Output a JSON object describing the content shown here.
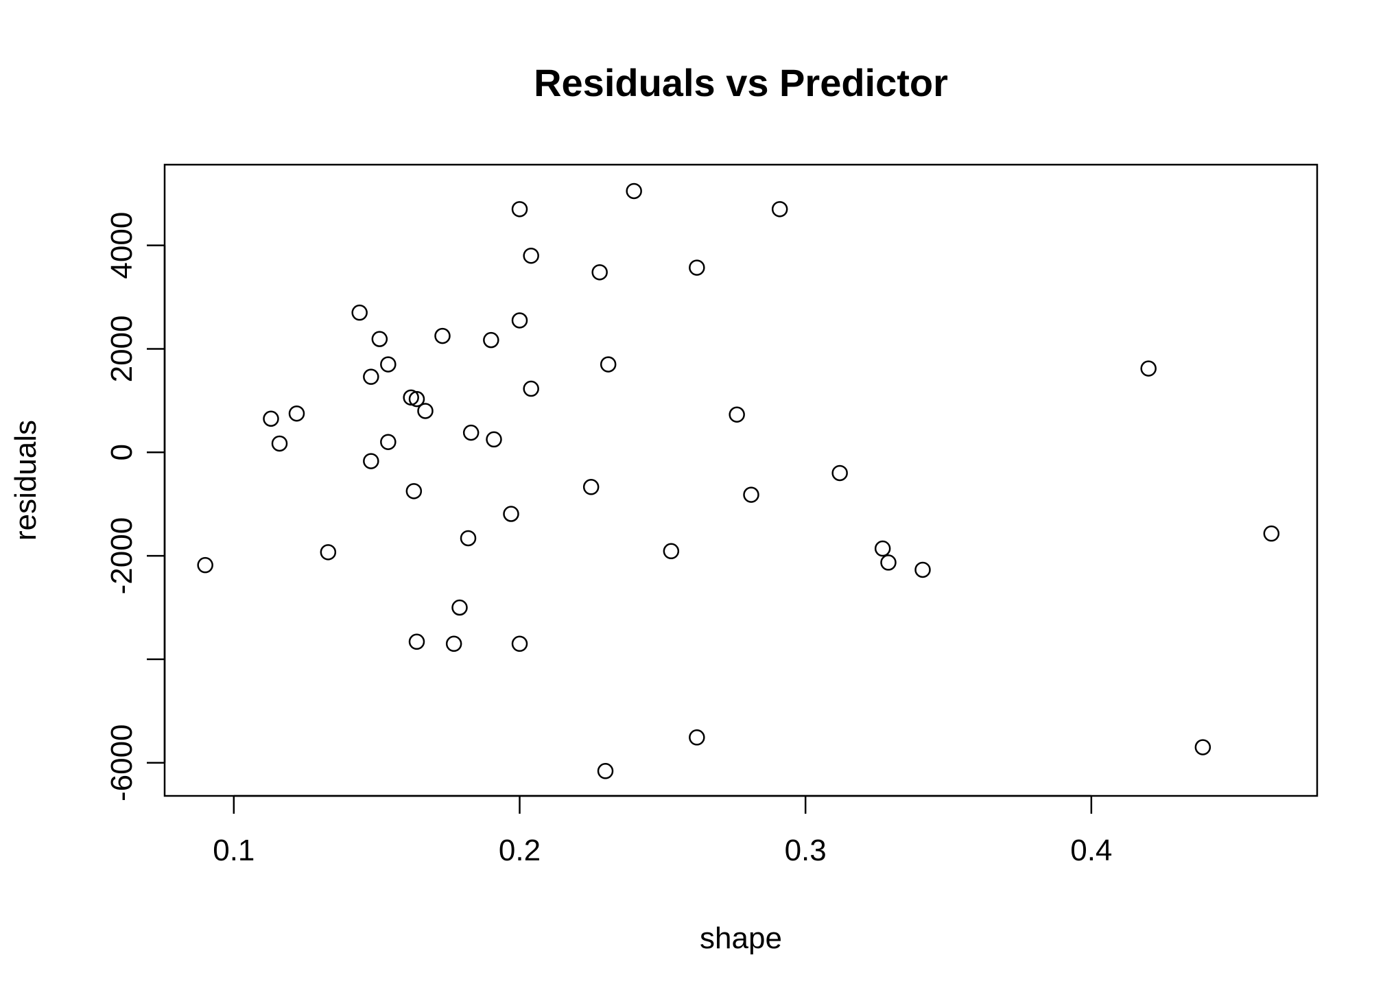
{
  "chart_data": {
    "type": "scatter",
    "title": "Residuals vs Predictor",
    "xlabel": "shape",
    "ylabel": "residuals",
    "xlim": [
      0.0758,
      0.479
    ],
    "ylim": [
      -6640,
      5560
    ],
    "xticks": [
      0.1,
      0.2,
      0.3,
      0.4
    ],
    "xtick_labels": [
      "0.1",
      "0.2",
      "0.3",
      "0.4"
    ],
    "yticks": [
      -6000,
      -4000,
      -2000,
      0,
      2000,
      4000
    ],
    "ytick_labels": [
      "-6000",
      "",
      "-2000",
      "0",
      "2000",
      "4000"
    ],
    "grid": false,
    "marker": "open-circle",
    "colors": {
      "points": "#000000",
      "axes": "#000000",
      "background": "#ffffff"
    },
    "points": [
      {
        "x": 0.09,
        "y": -2180
      },
      {
        "x": 0.113,
        "y": 650
      },
      {
        "x": 0.116,
        "y": 170
      },
      {
        "x": 0.122,
        "y": 750
      },
      {
        "x": 0.133,
        "y": -1930
      },
      {
        "x": 0.144,
        "y": 2700
      },
      {
        "x": 0.148,
        "y": 1460
      },
      {
        "x": 0.148,
        "y": -170
      },
      {
        "x": 0.151,
        "y": 2190
      },
      {
        "x": 0.154,
        "y": 1700
      },
      {
        "x": 0.154,
        "y": 200
      },
      {
        "x": 0.162,
        "y": 1060
      },
      {
        "x": 0.163,
        "y": -750
      },
      {
        "x": 0.164,
        "y": 1030
      },
      {
        "x": 0.164,
        "y": -3660
      },
      {
        "x": 0.167,
        "y": 800
      },
      {
        "x": 0.173,
        "y": 2250
      },
      {
        "x": 0.177,
        "y": -3700
      },
      {
        "x": 0.179,
        "y": -3000
      },
      {
        "x": 0.182,
        "y": -1660
      },
      {
        "x": 0.183,
        "y": 380
      },
      {
        "x": 0.19,
        "y": 2170
      },
      {
        "x": 0.191,
        "y": 250
      },
      {
        "x": 0.197,
        "y": -1190
      },
      {
        "x": 0.2,
        "y": 4700
      },
      {
        "x": 0.2,
        "y": 2550
      },
      {
        "x": 0.2,
        "y": -3700
      },
      {
        "x": 0.204,
        "y": 3800
      },
      {
        "x": 0.204,
        "y": 1230
      },
      {
        "x": 0.225,
        "y": -670
      },
      {
        "x": 0.228,
        "y": 3480
      },
      {
        "x": 0.23,
        "y": -6160
      },
      {
        "x": 0.231,
        "y": 1700
      },
      {
        "x": 0.24,
        "y": 5050
      },
      {
        "x": 0.253,
        "y": -1910
      },
      {
        "x": 0.262,
        "y": 3570
      },
      {
        "x": 0.262,
        "y": -5510
      },
      {
        "x": 0.276,
        "y": 730
      },
      {
        "x": 0.281,
        "y": -820
      },
      {
        "x": 0.291,
        "y": 4700
      },
      {
        "x": 0.312,
        "y": -400
      },
      {
        "x": 0.327,
        "y": -1860
      },
      {
        "x": 0.329,
        "y": -2130
      },
      {
        "x": 0.341,
        "y": -2270
      },
      {
        "x": 0.42,
        "y": 1620
      },
      {
        "x": 0.439,
        "y": -5700
      },
      {
        "x": 0.463,
        "y": -1570
      }
    ]
  }
}
